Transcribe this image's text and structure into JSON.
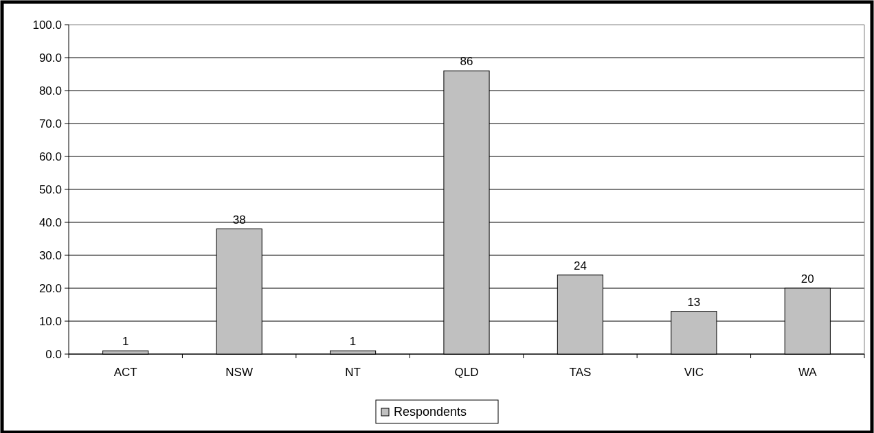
{
  "chart_data": {
    "type": "bar",
    "categories": [
      "ACT",
      "NSW",
      "NT",
      "QLD",
      "TAS",
      "VIC",
      "WA"
    ],
    "series": [
      {
        "name": "Respondents",
        "color": "#c0c0c0",
        "values": [
          1,
          38,
          1,
          86,
          24,
          13,
          20
        ]
      }
    ],
    "ylim": [
      0,
      100
    ],
    "yticks": [
      {
        "value": 0,
        "label": "0.0"
      },
      {
        "value": 10,
        "label": "10.0"
      },
      {
        "value": 20,
        "label": "20.0"
      },
      {
        "value": 30,
        "label": "30.0"
      },
      {
        "value": 40,
        "label": "40.0"
      },
      {
        "value": 50,
        "label": "50.0"
      },
      {
        "value": 60,
        "label": "60.0"
      },
      {
        "value": 70,
        "label": "70.0"
      },
      {
        "value": 80,
        "label": "80.0"
      },
      {
        "value": 90,
        "label": "90.0"
      },
      {
        "value": 100,
        "label": "100.0"
      }
    ],
    "grid": "y",
    "data_labels": true,
    "legend": "bottom"
  }
}
